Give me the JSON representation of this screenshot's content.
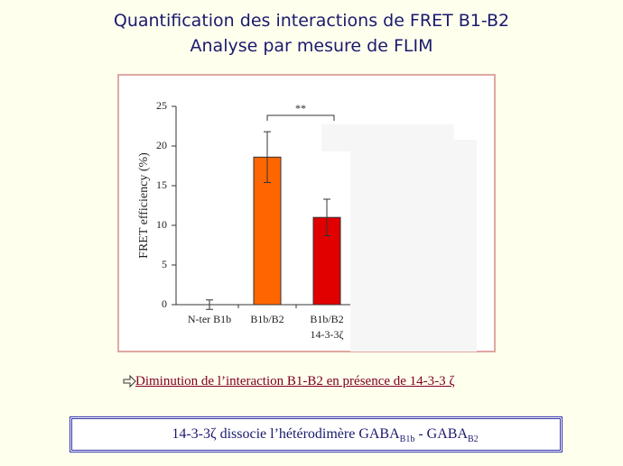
{
  "title": [
    "Quantification des interactions de FRET B1-B2",
    "Analyse par mesure de FLIM"
  ],
  "chart_data": {
    "type": "bar",
    "ylabel": "FRET efficiency (%)",
    "categories": [
      "N-ter B1b",
      "B1b/B2",
      "B1b/B2\n14-3-3ζ"
    ],
    "series": [
      {
        "values": [
          0,
          18.6,
          11.0
        ],
        "errors": [
          0.6,
          3.2,
          2.3
        ],
        "colors": [
          "#ff6600",
          "#ff6600",
          "#e00000"
        ]
      }
    ],
    "ylim": [
      0,
      25
    ],
    "yticks": [
      0,
      5,
      10,
      15,
      20,
      25
    ],
    "annotation": "**"
  },
  "caption": "Diminution de l’interaction B1-B2 en présence de 14-3-3 ζ",
  "conclusion": {
    "text": "14-3-3ζ dissocie l’hétérodimère GABA",
    "sub1": "B1b",
    "mid": " - GABA",
    "sub2": "B2"
  }
}
